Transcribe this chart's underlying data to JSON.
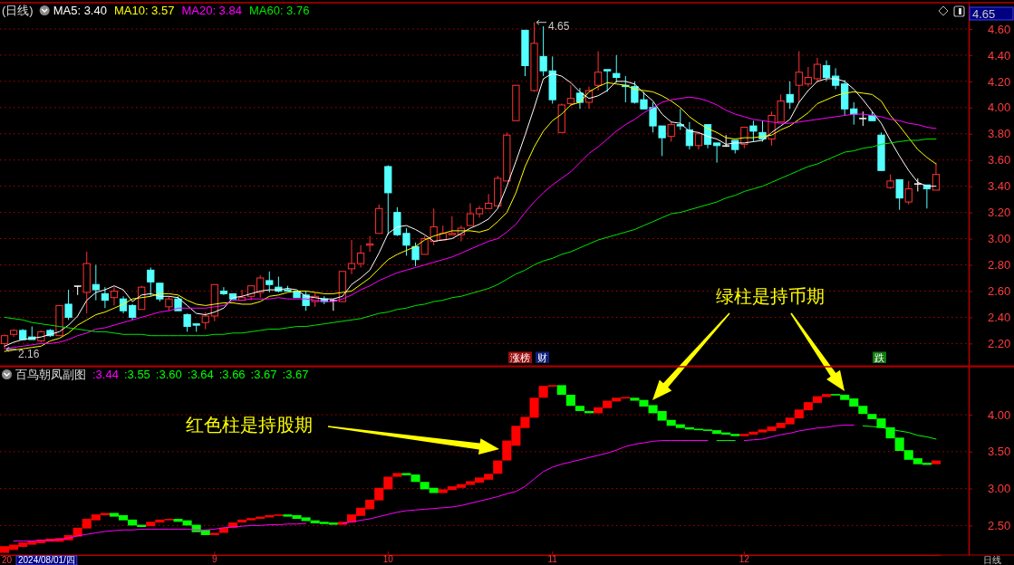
{
  "chart_data": [
    {
      "type": "candlestick",
      "title": "(日线)",
      "categories": [
        null,
        null,
        null,
        null,
        null,
        null,
        null,
        null,
        null,
        null,
        null,
        null,
        null,
        null,
        null,
        null,
        null,
        null,
        null,
        null,
        null,
        null,
        null,
        "9",
        null,
        null,
        null,
        null,
        null,
        null,
        null,
        null,
        null,
        null,
        null,
        null,
        null,
        null,
        null,
        null,
        null,
        null,
        "10",
        null,
        null,
        null,
        null,
        null,
        null,
        null,
        null,
        null,
        null,
        null,
        null,
        null,
        null,
        null,
        null,
        null,
        "11",
        null,
        null,
        null,
        null,
        null,
        null,
        null,
        null,
        null,
        null,
        null,
        null,
        null,
        null,
        null,
        null,
        null,
        null,
        null,
        null,
        "12",
        null,
        null,
        null,
        null,
        null,
        null,
        null,
        null,
        null,
        null,
        null,
        null,
        null,
        null,
        null,
        null,
        null,
        null,
        null,
        null,
        null
      ],
      "ohlc": [
        [
          2.2,
          2.27,
          2.16,
          2.26
        ],
        [
          2.27,
          2.31,
          2.25,
          2.3
        ],
        [
          2.3,
          2.31,
          2.23,
          2.23
        ],
        [
          2.25,
          2.33,
          2.23,
          2.23
        ],
        [
          2.22,
          2.3,
          2.21,
          2.29
        ],
        [
          2.3,
          2.31,
          2.25,
          2.26
        ],
        [
          2.26,
          2.49,
          2.26,
          2.49
        ],
        [
          2.5,
          2.61,
          2.38,
          2.4
        ],
        [
          2.64,
          2.64,
          2.57,
          2.64
        ],
        [
          2.59,
          2.9,
          2.43,
          2.81
        ],
        [
          2.65,
          2.8,
          2.53,
          2.61
        ],
        [
          2.58,
          2.63,
          2.47,
          2.53
        ],
        [
          2.55,
          2.63,
          2.49,
          2.6
        ],
        [
          2.54,
          2.56,
          2.43,
          2.45
        ],
        [
          2.49,
          2.5,
          2.38,
          2.4
        ],
        [
          2.46,
          2.64,
          2.46,
          2.63
        ],
        [
          2.76,
          2.78,
          2.56,
          2.67
        ],
        [
          2.66,
          2.66,
          2.52,
          2.54
        ],
        [
          2.48,
          2.56,
          2.45,
          2.54
        ],
        [
          2.54,
          2.56,
          2.45,
          2.45
        ],
        [
          2.42,
          2.43,
          2.29,
          2.33
        ],
        [
          2.35,
          2.35,
          2.29,
          2.34
        ],
        [
          2.36,
          2.44,
          2.31,
          2.41
        ],
        [
          2.41,
          2.65,
          2.37,
          2.65
        ],
        [
          2.6,
          2.63,
          2.57,
          2.58
        ],
        [
          2.58,
          2.58,
          2.54,
          2.54
        ],
        [
          2.53,
          2.61,
          2.53,
          2.55
        ],
        [
          2.56,
          2.64,
          2.53,
          2.64
        ],
        [
          2.59,
          2.72,
          2.55,
          2.7
        ],
        [
          2.68,
          2.75,
          2.59,
          2.65
        ],
        [
          2.63,
          2.71,
          2.59,
          2.6
        ],
        [
          2.61,
          2.64,
          2.6,
          2.6
        ],
        [
          2.6,
          2.6,
          2.55,
          2.55
        ],
        [
          2.57,
          2.6,
          2.45,
          2.49
        ],
        [
          2.52,
          2.59,
          2.48,
          2.56
        ],
        [
          2.54,
          2.56,
          2.5,
          2.52
        ],
        [
          2.53,
          2.54,
          2.45,
          2.53
        ],
        [
          2.52,
          2.75,
          2.52,
          2.75
        ],
        [
          2.77,
          2.99,
          2.73,
          2.81
        ],
        [
          2.81,
          2.95,
          2.78,
          2.89
        ],
        [
          2.95,
          3.02,
          2.9,
          2.96
        ],
        [
          3.04,
          3.26,
          3.04,
          3.23
        ],
        [
          3.55,
          3.56,
          3.03,
          3.35
        ],
        [
          3.2,
          3.24,
          3.02,
          3.03
        ],
        [
          3.04,
          3.08,
          2.87,
          2.95
        ],
        [
          2.94,
          2.97,
          2.79,
          2.84
        ],
        [
          2.88,
          3.02,
          2.88,
          3.0
        ],
        [
          2.98,
          3.23,
          2.95,
          3.09
        ],
        [
          2.99,
          3.1,
          2.99,
          3.04
        ],
        [
          3.03,
          3.17,
          3.03,
          3.04
        ],
        [
          3.03,
          3.1,
          2.98,
          3.08
        ],
        [
          3.1,
          3.27,
          3.1,
          3.19
        ],
        [
          3.19,
          3.25,
          3.16,
          3.23
        ],
        [
          3.23,
          3.34,
          3.23,
          3.27
        ],
        [
          3.25,
          3.48,
          3.25,
          3.46
        ],
        [
          3.44,
          3.81,
          3.44,
          3.79
        ],
        [
          3.9,
          4.17,
          3.9,
          4.17
        ],
        [
          4.59,
          4.59,
          4.24,
          4.32
        ],
        [
          4.13,
          4.65,
          4.12,
          4.49
        ],
        [
          4.39,
          4.62,
          4.24,
          4.28
        ],
        [
          4.28,
          4.39,
          4.03,
          4.06
        ],
        [
          3.81,
          4.03,
          3.81,
          4.02
        ],
        [
          4.03,
          4.17,
          4.01,
          4.07
        ],
        [
          4.11,
          4.15,
          3.99,
          4.04
        ],
        [
          4.04,
          4.16,
          3.99,
          4.13
        ],
        [
          4.17,
          4.43,
          4.13,
          4.27
        ],
        [
          4.29,
          4.29,
          4.12,
          4.28
        ],
        [
          4.26,
          4.4,
          4.19,
          4.23
        ],
        [
          4.17,
          4.24,
          4.04,
          4.16
        ],
        [
          4.16,
          4.2,
          4.03,
          4.04
        ],
        [
          4.06,
          4.12,
          3.99,
          3.99
        ],
        [
          4.0,
          4.04,
          3.81,
          3.86
        ],
        [
          3.86,
          3.86,
          3.63,
          3.77
        ],
        [
          3.78,
          3.89,
          3.74,
          3.87
        ],
        [
          3.87,
          3.99,
          3.83,
          3.86
        ],
        [
          3.83,
          3.89,
          3.68,
          3.71
        ],
        [
          3.71,
          3.8,
          3.68,
          3.8
        ],
        [
          3.87,
          3.87,
          3.69,
          3.72
        ],
        [
          3.73,
          3.73,
          3.58,
          3.71
        ],
        [
          3.71,
          3.79,
          3.7,
          3.71
        ],
        [
          3.75,
          3.75,
          3.65,
          3.68
        ],
        [
          3.72,
          3.85,
          3.69,
          3.85
        ],
        [
          3.86,
          3.9,
          3.74,
          3.82
        ],
        [
          3.81,
          3.9,
          3.74,
          3.76
        ],
        [
          3.76,
          3.97,
          3.71,
          3.94
        ],
        [
          3.89,
          4.1,
          3.89,
          4.05
        ],
        [
          4.1,
          4.2,
          3.99,
          4.04
        ],
        [
          4.17,
          4.43,
          4.04,
          4.27
        ],
        [
          4.18,
          4.31,
          4.16,
          4.23
        ],
        [
          4.22,
          4.38,
          4.19,
          4.33
        ],
        [
          4.32,
          4.36,
          4.2,
          4.23
        ],
        [
          4.24,
          4.3,
          4.14,
          4.17
        ],
        [
          4.18,
          4.21,
          3.94,
          3.99
        ],
        [
          3.99,
          4.04,
          3.87,
          3.95
        ],
        [
          3.92,
          3.97,
          3.86,
          3.92
        ],
        [
          3.94,
          3.97,
          3.9,
          3.9
        ],
        [
          3.79,
          3.81,
          3.52,
          3.52
        ],
        [
          3.39,
          3.49,
          3.38,
          3.44
        ],
        [
          3.45,
          3.45,
          3.22,
          3.31
        ],
        [
          3.28,
          3.44,
          3.26,
          3.38
        ],
        [
          3.42,
          3.46,
          3.36,
          3.42
        ],
        [
          3.41,
          3.41,
          3.23,
          3.38
        ],
        [
          3.37,
          3.58,
          3.37,
          3.49
        ]
      ],
      "series": [
        {
          "type": "line",
          "name": "MA5: 3.40",
          "color": "#ffffff",
          "values": [
            2.18,
            2.21,
            2.23,
            2.24,
            2.25,
            2.27,
            2.29,
            2.34,
            2.41,
            2.53,
            2.59,
            2.61,
            2.64,
            2.61,
            2.52,
            2.57,
            2.58,
            2.56,
            2.56,
            2.55,
            2.49,
            2.43,
            2.42,
            2.44,
            2.47,
            2.55,
            2.56,
            2.58,
            2.6,
            2.61,
            2.61,
            2.62,
            2.61,
            2.56,
            2.55,
            2.54,
            2.54,
            2.56,
            2.65,
            2.7,
            2.76,
            2.89,
            3.04,
            3.09,
            3.1,
            3.07,
            3.03,
            2.98,
            2.99,
            3.0,
            3.04,
            3.08,
            3.11,
            3.15,
            3.23,
            3.4,
            3.59,
            3.79,
            4.0,
            4.22,
            4.26,
            4.24,
            4.19,
            4.12,
            4.07,
            4.09,
            4.13,
            4.2,
            4.2,
            4.18,
            4.11,
            4.05,
            3.95,
            3.89,
            3.88,
            3.82,
            3.81,
            3.78,
            3.76,
            3.72,
            3.73,
            3.73,
            3.74,
            3.75,
            3.81,
            3.86,
            3.91,
            4.04,
            4.13,
            4.2,
            4.22,
            4.22,
            4.2,
            4.14,
            4.06,
            3.97,
            3.88,
            3.75,
            3.63,
            3.52,
            3.43,
            3.4,
            3.4
          ]
        },
        {
          "type": "line",
          "name": "MA10: 3.57",
          "color": "#ffff00",
          "values": [
            2.14,
            2.15,
            2.16,
            2.17,
            2.18,
            2.22,
            2.24,
            2.28,
            2.34,
            2.38,
            2.42,
            2.44,
            2.47,
            2.5,
            2.54,
            2.55,
            2.56,
            2.58,
            2.58,
            2.57,
            2.53,
            2.5,
            2.49,
            2.5,
            2.51,
            2.51,
            2.5,
            2.5,
            2.52,
            2.56,
            2.57,
            2.59,
            2.6,
            2.6,
            2.59,
            2.58,
            2.58,
            2.59,
            2.6,
            2.65,
            2.7,
            2.77,
            2.84,
            2.88,
            2.91,
            2.94,
            2.99,
            3.02,
            3.04,
            3.06,
            3.06,
            3.06,
            3.05,
            3.07,
            3.13,
            3.2,
            3.35,
            3.55,
            3.7,
            3.82,
            3.9,
            3.95,
            4.02,
            4.04,
            4.12,
            4.16,
            4.19,
            4.18,
            4.17,
            4.14,
            4.13,
            4.12,
            4.09,
            4.05,
            4.0,
            3.93,
            3.88,
            3.84,
            3.81,
            3.77,
            3.76,
            3.77,
            3.77,
            3.78,
            3.79,
            3.83,
            3.86,
            3.91,
            3.96,
            4.03,
            4.06,
            4.09,
            4.11,
            4.12,
            4.11,
            4.1,
            4.05,
            3.94,
            3.86,
            3.77,
            3.68,
            3.62,
            3.57
          ]
        },
        {
          "type": "line",
          "name": "MA20: 3.84",
          "color": "#ff00ff",
          "values": [
            2.16,
            2.17,
            2.18,
            2.19,
            2.2,
            2.2,
            2.21,
            2.23,
            2.26,
            2.28,
            2.31,
            2.32,
            2.34,
            2.36,
            2.38,
            2.4,
            2.42,
            2.44,
            2.45,
            2.47,
            2.47,
            2.47,
            2.47,
            2.48,
            2.49,
            2.53,
            2.53,
            2.54,
            2.54,
            2.54,
            2.55,
            2.54,
            2.54,
            2.54,
            2.53,
            2.52,
            2.52,
            2.54,
            2.57,
            2.61,
            2.64,
            2.68,
            2.71,
            2.74,
            2.76,
            2.78,
            2.8,
            2.82,
            2.84,
            2.86,
            2.89,
            2.92,
            2.95,
            2.98,
            3.0,
            3.05,
            3.11,
            3.2,
            3.28,
            3.35,
            3.41,
            3.46,
            3.51,
            3.58,
            3.65,
            3.7,
            3.76,
            3.82,
            3.87,
            3.91,
            3.96,
            4.0,
            4.04,
            4.06,
            4.07,
            4.08,
            4.07,
            4.05,
            4.02,
            3.98,
            3.95,
            3.93,
            3.91,
            3.9,
            3.89,
            3.88,
            3.88,
            3.89,
            3.9,
            3.91,
            3.92,
            3.93,
            3.94,
            3.95,
            3.95,
            3.94,
            3.93,
            3.91,
            3.9,
            3.88,
            3.87,
            3.85,
            3.84
          ]
        },
        {
          "type": "line",
          "name": "MA60: 3.76",
          "color": "#00e600",
          "values": [
            2.4,
            2.39,
            2.38,
            2.36,
            2.35,
            2.34,
            2.33,
            2.32,
            2.31,
            2.3,
            2.29,
            2.29,
            2.28,
            2.27,
            2.27,
            2.27,
            2.26,
            2.26,
            2.26,
            2.26,
            2.26,
            2.26,
            2.26,
            2.27,
            2.27,
            2.28,
            2.28,
            2.29,
            2.3,
            2.31,
            2.31,
            2.32,
            2.33,
            2.33,
            2.34,
            2.35,
            2.36,
            2.37,
            2.38,
            2.39,
            2.41,
            2.43,
            2.44,
            2.46,
            2.47,
            2.49,
            2.5,
            2.52,
            2.53,
            2.55,
            2.56,
            2.58,
            2.6,
            2.62,
            2.65,
            2.69,
            2.73,
            2.76,
            2.8,
            2.83,
            2.85,
            2.88,
            2.9,
            2.93,
            2.96,
            2.99,
            3.01,
            3.03,
            3.05,
            3.07,
            3.1,
            3.13,
            3.16,
            3.19,
            3.2,
            3.22,
            3.24,
            3.26,
            3.28,
            3.31,
            3.33,
            3.36,
            3.38,
            3.4,
            3.43,
            3.46,
            3.49,
            3.52,
            3.55,
            3.57,
            3.6,
            3.63,
            3.66,
            3.67,
            3.69,
            3.7,
            3.72,
            3.73,
            3.74,
            3.75,
            3.75,
            3.76,
            3.76
          ]
        }
      ],
      "ylim": [
        2.03,
        4.8
      ],
      "yticks": [
        {
          "value": 2.2,
          "label": "2.20"
        },
        {
          "value": 2.4,
          "label": "2.40"
        },
        {
          "value": 2.6,
          "label": "2.60"
        },
        {
          "value": 2.8,
          "label": "2.80"
        },
        {
          "value": 3.0,
          "label": "3.00"
        },
        {
          "value": 3.2,
          "label": "3.20"
        },
        {
          "value": 3.4,
          "label": "3.40"
        },
        {
          "value": 3.6,
          "label": "3.60"
        },
        {
          "value": 3.8,
          "label": "3.80"
        },
        {
          "value": 4.0,
          "label": "4.00"
        },
        {
          "value": 4.2,
          "label": "4.20"
        },
        {
          "value": 4.4,
          "label": "4.40"
        },
        {
          "value": 4.6,
          "label": "4.60"
        }
      ],
      "grid": "y",
      "legend": "top left",
      "tick_labels": "y",
      "annotations": [
        "4.65",
        "2.16",
        "涨榜",
        "财",
        "跌",
        "绿柱是持币期",
        "4.65"
      ]
    },
    {
      "type": "bar",
      "title": "百鸟朝凤副图",
      "categories": [
        null,
        null,
        null,
        null,
        null,
        null,
        null,
        null,
        null,
        null,
        null,
        null,
        null,
        null,
        null,
        null,
        null,
        null,
        null,
        null,
        null,
        null,
        null,
        "9",
        null,
        null,
        null,
        null,
        null,
        null,
        null,
        null,
        null,
        null,
        null,
        null,
        null,
        null,
        null,
        null,
        null,
        null,
        "10",
        null,
        null,
        null,
        null,
        null,
        null,
        null,
        null,
        null,
        null,
        null,
        null,
        null,
        null,
        null,
        null,
        null,
        "11",
        null,
        null,
        null,
        null,
        null,
        null,
        null,
        null,
        null,
        null,
        null,
        null,
        null,
        null,
        null,
        null,
        null,
        null,
        null,
        null,
        "12",
        null,
        null,
        null,
        null,
        null,
        null,
        null,
        null,
        null,
        null,
        null,
        null,
        null,
        null,
        null,
        null,
        null,
        null,
        null,
        null,
        null
      ],
      "series": [
        {
          "values": [
            0.09,
            0.07,
            0.06,
            0.05,
            0.05,
            0.04,
            0.05,
            0.07,
            0.12,
            0.13,
            0.08,
            0.03,
            -0.05,
            -0.07,
            -0.08,
            -0.03,
            0.06,
            0.04,
            0.02,
            -0.04,
            -0.07,
            -0.1,
            -0.07,
            0.03,
            0.07,
            0.07,
            0.04,
            0.03,
            0.03,
            0.03,
            0.02,
            -0.03,
            -0.05,
            -0.05,
            -0.04,
            -0.03,
            -0.03,
            0.04,
            0.11,
            0.11,
            0.13,
            0.17,
            0.17,
            0.05,
            -0.03,
            -0.1,
            -0.1,
            -0.07,
            0.05,
            0.05,
            0.05,
            0.05,
            0.07,
            0.08,
            0.18,
            0.27,
            0.27,
            0.15,
            0.27,
            0.16,
            0.02,
            -0.13,
            -0.15,
            -0.07,
            -0.03,
            0.08,
            0.1,
            0.05,
            0.02,
            -0.04,
            -0.09,
            -0.11,
            -0.13,
            -0.08,
            -0.05,
            -0.03,
            -0.02,
            -0.02,
            -0.05,
            -0.03,
            -0.03,
            0.03,
            0.04,
            0.04,
            0.06,
            0.07,
            0.09,
            0.12,
            0.11,
            0.09,
            0.04,
            -0.02,
            -0.07,
            -0.11,
            -0.11,
            -0.07,
            -0.13,
            -0.15,
            -0.18,
            -0.13,
            -0.08,
            -0.03,
            0.05
          ],
          "base": [
            2.13,
            2.17,
            2.21,
            2.24,
            2.26,
            2.28,
            2.28,
            2.3,
            2.35,
            2.46,
            2.57,
            2.64,
            2.67,
            2.64,
            2.58,
            2.51,
            2.49,
            2.54,
            2.57,
            2.59,
            2.57,
            2.51,
            2.44,
            2.37,
            2.4,
            2.47,
            2.54,
            2.57,
            2.59,
            2.61,
            2.63,
            2.65,
            2.64,
            2.61,
            2.57,
            2.55,
            2.54,
            2.51,
            2.54,
            2.63,
            2.72,
            2.84,
            2.99,
            3.16,
            3.21,
            3.19,
            3.09,
            3.01,
            2.94,
            2.98,
            3.01,
            3.05,
            3.08,
            3.12,
            3.2,
            3.38,
            3.58,
            3.82,
            3.96,
            4.23,
            4.38,
            4.4,
            4.27,
            4.12,
            4.05,
            4.02,
            4.09,
            4.18,
            4.22,
            4.23,
            4.2,
            4.13,
            4.05,
            3.93,
            3.87,
            3.83,
            3.81,
            3.8,
            3.79,
            3.76,
            3.74,
            3.71,
            3.73,
            3.76,
            3.78,
            3.82,
            3.87,
            3.95,
            4.06,
            4.16,
            4.24,
            4.28,
            4.27,
            4.22,
            4.12,
            4.01,
            3.95,
            3.83,
            3.69,
            3.52,
            3.41,
            3.35,
            3.33
          ],
          "colors": [
            "#ff0000",
            "#ff0000",
            "#ff0000",
            "#ff0000",
            "#ff0000",
            "#ff0000",
            "#ff0000",
            "#ff0000",
            "#ff0000",
            "#ff0000",
            "#ff0000",
            "#ff0000",
            "#00ff00",
            "#00ff00",
            "#00ff00",
            "#00ff00",
            "#ff0000",
            "#ff0000",
            "#ff0000",
            "#00ff00",
            "#00ff00",
            "#00ff00",
            "#00ff00",
            "#ff0000",
            "#ff0000",
            "#ff0000",
            "#ff0000",
            "#ff0000",
            "#ff0000",
            "#ff0000",
            "#ff0000",
            "#00ff00",
            "#00ff00",
            "#00ff00",
            "#00ff00",
            "#00ff00",
            "#00ff00",
            "#ff0000",
            "#ff0000",
            "#ff0000",
            "#ff0000",
            "#ff0000",
            "#ff0000",
            "#ff0000",
            "#00ff00",
            "#00ff00",
            "#00ff00",
            "#00ff00",
            "#ff0000",
            "#ff0000",
            "#ff0000",
            "#ff0000",
            "#ff0000",
            "#ff0000",
            "#ff0000",
            "#ff0000",
            "#ff0000",
            "#ff0000",
            "#ff0000",
            "#ff0000",
            "#ff0000",
            "#00ff00",
            "#00ff00",
            "#00ff00",
            "#00ff00",
            "#ff0000",
            "#ff0000",
            "#ff0000",
            "#ff0000",
            "#00ff00",
            "#00ff00",
            "#00ff00",
            "#00ff00",
            "#00ff00",
            "#00ff00",
            "#00ff00",
            "#00ff00",
            "#00ff00",
            "#00ff00",
            "#00ff00",
            "#00ff00",
            "#ff0000",
            "#ff0000",
            "#ff0000",
            "#ff0000",
            "#ff0000",
            "#ff0000",
            "#ff0000",
            "#ff0000",
            "#ff0000",
            "#ff0000",
            "#00ff00",
            "#00ff00",
            "#00ff00",
            "#00ff00",
            "#00ff00",
            "#00ff00",
            "#00ff00",
            "#00ff00",
            "#00ff00",
            "#00ff00",
            "#00ff00",
            "#ff0000"
          ]
        },
        {
          "type": "line",
          "color": "#ff00ff",
          "values": [
            null,
            2.29,
            2.29,
            2.29,
            2.3,
            2.3,
            2.31,
            2.33,
            2.36,
            2.38,
            2.4,
            2.42,
            2.43,
            2.44,
            2.44,
            2.45,
            2.45,
            2.45,
            2.45,
            2.45,
            2.45,
            2.44,
            2.44,
            2.45,
            2.47,
            2.48,
            2.49,
            2.5,
            2.5,
            2.51,
            2.51,
            2.52,
            2.52,
            2.53,
            null,
            null,
            null,
            2.53,
            2.55,
            2.57,
            2.59,
            2.62,
            2.65,
            2.68,
            2.7,
            2.71,
            2.72,
            2.73,
            2.74,
            2.75,
            2.77,
            2.8,
            2.83,
            2.86,
            2.89,
            2.93,
            2.96,
            3.03,
            3.13,
            3.23,
            3.29,
            3.33,
            3.36,
            3.39,
            3.42,
            3.45,
            3.48,
            3.52,
            3.57,
            3.6,
            3.62,
            3.64,
            3.65,
            3.65,
            3.65,
            3.65,
            3.65,
            3.65,
            null,
            null,
            null,
            3.65,
            3.66,
            3.67,
            3.7,
            3.73,
            3.75,
            3.78,
            3.8,
            3.82,
            3.83,
            3.85,
            3.86,
            3.86,
            null,
            null,
            null,
            null,
            null,
            null,
            null,
            null,
            null
          ]
        },
        {
          "type": "line",
          "color": "#00ff00",
          "values": [
            null,
            null,
            null,
            null,
            null,
            null,
            null,
            null,
            null,
            null,
            null,
            null,
            null,
            null,
            null,
            null,
            null,
            null,
            null,
            null,
            null,
            null,
            null,
            null,
            null,
            null,
            null,
            null,
            null,
            null,
            null,
            null,
            null,
            null,
            null,
            null,
            null,
            null,
            null,
            null,
            null,
            null,
            null,
            null,
            null,
            null,
            null,
            null,
            null,
            null,
            null,
            null,
            null,
            null,
            null,
            null,
            null,
            null,
            null,
            null,
            null,
            null,
            null,
            null,
            null,
            null,
            null,
            null,
            null,
            null,
            null,
            null,
            null,
            null,
            null,
            null,
            null,
            null,
            3.65,
            3.65,
            3.65,
            null,
            null,
            null,
            null,
            null,
            null,
            null,
            null,
            null,
            null,
            null,
            null,
            null,
            3.85,
            3.84,
            3.83,
            3.8,
            3.78,
            3.76,
            3.72,
            3.7,
            3.67
          ]
        }
      ],
      "ylim": [
        2.1,
        4.65
      ],
      "yticks": [
        {
          "value": 2.5,
          "label": "2.50"
        },
        {
          "value": 3.0,
          "label": "3.00"
        },
        {
          "value": 3.5,
          "label": "3.50"
        },
        {
          "value": 4.0,
          "label": "4.00"
        }
      ],
      "grid": "y",
      "annotations": [
        "红色柱是持股期",
        ":3.44",
        ":3.55",
        ":3.60",
        ":3.64",
        ":3.66",
        ":3.67",
        ":3.67",
        "20",
        "2024/08/01/四",
        "日线"
      ]
    }
  ]
}
